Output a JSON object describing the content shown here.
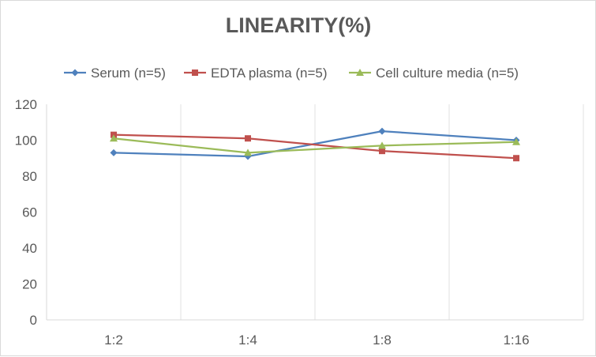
{
  "chart_data": {
    "type": "line",
    "title": "LINEARITY(%)",
    "xlabel": "",
    "ylabel": "",
    "categories": [
      "1:2",
      "1:4",
      "1:8",
      "1:16"
    ],
    "ylim": [
      0,
      120
    ],
    "yticks": [
      0,
      20,
      40,
      60,
      80,
      100,
      120
    ],
    "grid": "vertical",
    "legend": "top",
    "series": [
      {
        "name": "Serum (n=5)",
        "values": [
          93,
          91,
          105,
          100
        ],
        "color": "#4f81bd",
        "marker": "diamond"
      },
      {
        "name": "EDTA plasma (n=5)",
        "values": [
          103,
          101,
          94,
          90
        ],
        "color": "#c0504d",
        "marker": "square"
      },
      {
        "name": "Cell culture media (n=5)",
        "values": [
          101,
          93,
          97,
          99
        ],
        "color": "#9bbb59",
        "marker": "triangle"
      }
    ]
  }
}
